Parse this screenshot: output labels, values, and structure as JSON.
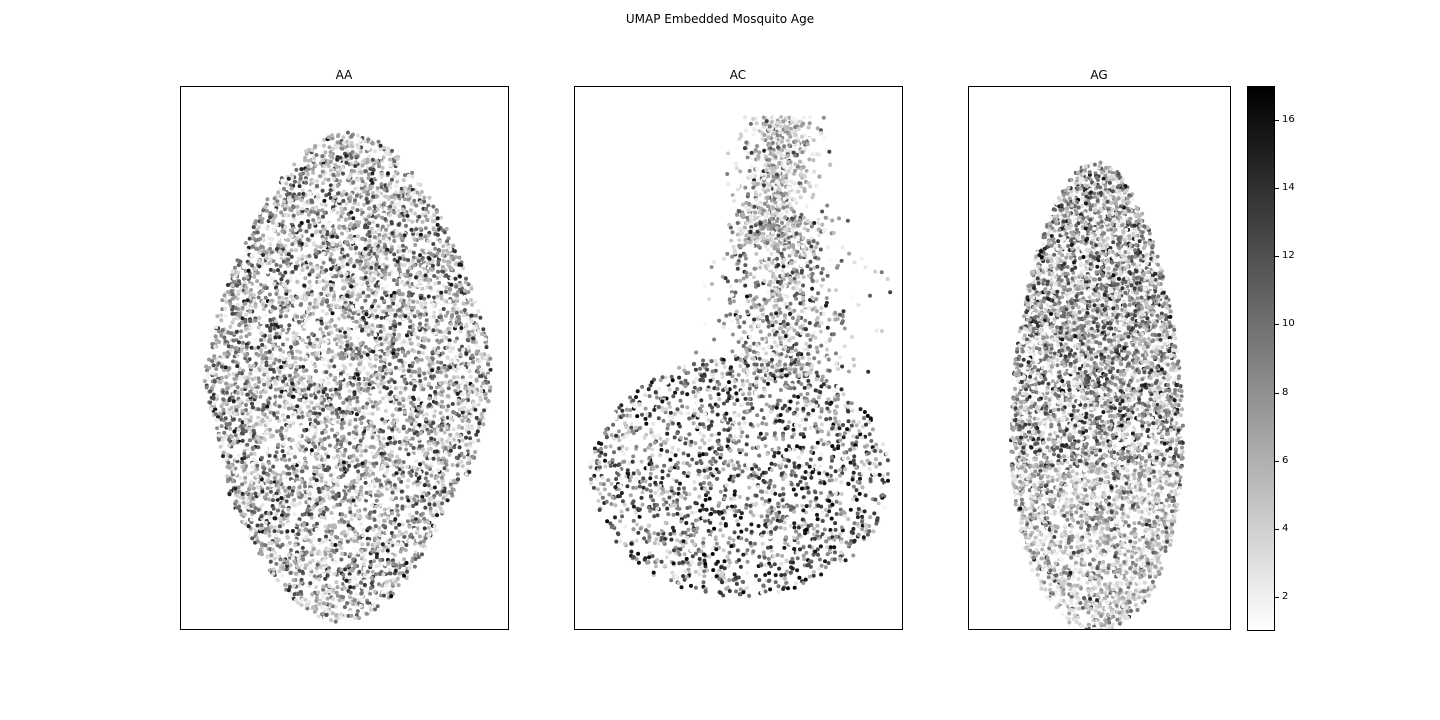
{
  "chart_data": {
    "type": "scatter",
    "title": "UMAP Embedded Mosquito Age",
    "panels": [
      {
        "name": "AA",
        "shape": "broad-oval",
        "n_points": 6500
      },
      {
        "name": "AC",
        "shape": "teardrop",
        "n_points": 3600
      },
      {
        "name": "AG",
        "shape": "tall-oval",
        "n_points": 6000
      }
    ],
    "axis_ticks": false,
    "grid": false,
    "colorbar": {
      "label": "",
      "vmin": 1,
      "vmax": 17,
      "ticks": [
        "2",
        "4",
        "6",
        "8",
        "10",
        "12",
        "14",
        "16"
      ],
      "colormap": "Greys",
      "color_low": "#ffffff",
      "color_high": "#000000"
    }
  }
}
